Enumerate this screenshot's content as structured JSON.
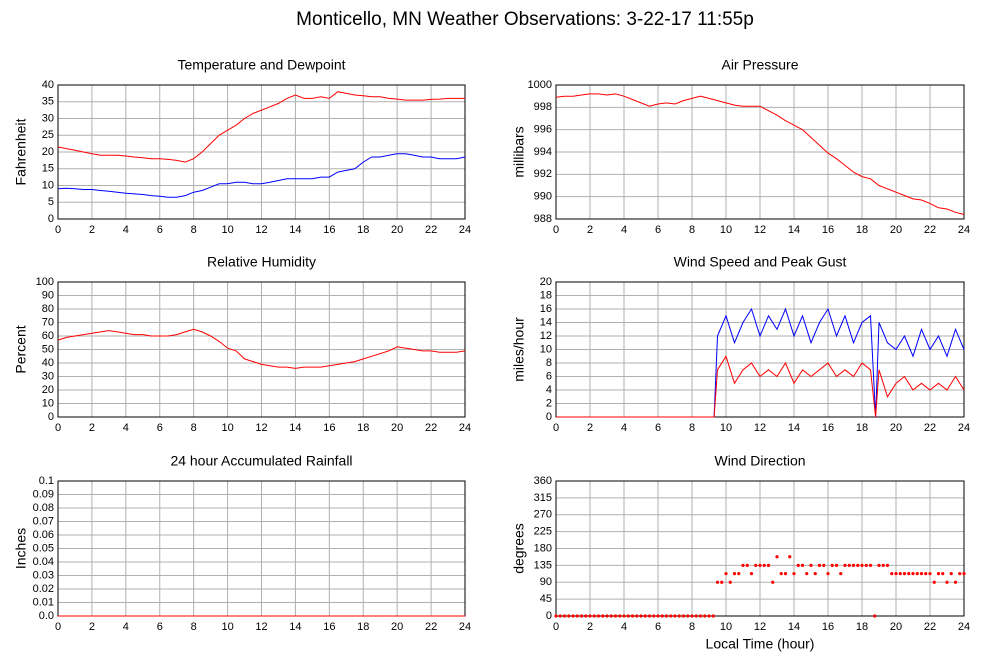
{
  "title": "Monticello, MN Weather Observations: 3-22-17 11:55p",
  "chart_data": [
    {
      "type": "line",
      "title": "Temperature and Dewpoint",
      "ylabel": "Fahrenheit",
      "x": [
        0,
        0.5,
        1,
        1.5,
        2,
        2.5,
        3,
        3.5,
        4,
        4.5,
        5,
        5.5,
        6,
        6.5,
        7,
        7.5,
        8,
        8.5,
        9,
        9.5,
        10,
        10.5,
        11,
        11.5,
        12,
        12.5,
        13,
        13.5,
        14,
        14.5,
        15,
        15.5,
        16,
        16.5,
        17,
        17.5,
        18,
        18.5,
        19,
        19.5,
        20,
        20.5,
        21,
        21.5,
        22,
        22.5,
        23,
        23.5,
        24
      ],
      "series": [
        {
          "color": "#ff0000",
          "values": [
            21.5,
            21,
            20.5,
            20,
            19.5,
            19,
            19,
            19,
            18.8,
            18.5,
            18.3,
            18,
            18,
            17.8,
            17.5,
            17,
            18,
            20,
            22.5,
            25,
            26.5,
            28,
            30,
            31.5,
            32.5,
            33.5,
            34.5,
            36,
            37,
            36,
            36,
            36.5,
            36,
            38,
            37.5,
            37,
            36.8,
            36.5,
            36.5,
            36,
            35.8,
            35.5,
            35.5,
            35.5,
            35.7,
            35.8,
            36,
            36,
            36
          ]
        },
        {
          "color": "#0000ff",
          "values": [
            9,
            9.2,
            9,
            8.8,
            8.8,
            8.5,
            8.3,
            8,
            7.7,
            7.5,
            7.3,
            7,
            6.8,
            6.5,
            6.5,
            7,
            8,
            8.5,
            9.5,
            10.5,
            10.5,
            11,
            11,
            10.5,
            10.5,
            11,
            11.5,
            12,
            12,
            12,
            12,
            12.5,
            12.5,
            14,
            14.5,
            15,
            17,
            18.5,
            18.5,
            19,
            19.5,
            19.5,
            19,
            18.5,
            18.5,
            18,
            18,
            18,
            18.5
          ]
        }
      ],
      "xlim": [
        0,
        24
      ],
      "xticks": [
        0,
        2,
        4,
        6,
        8,
        10,
        12,
        14,
        16,
        18,
        20,
        22,
        24
      ],
      "ylim": [
        0,
        40
      ],
      "yticks": [
        0,
        5,
        10,
        15,
        20,
        25,
        30,
        35,
        40
      ],
      "grid": true
    },
    {
      "type": "line",
      "title": "Air Pressure",
      "ylabel": "millibars",
      "x": [
        0,
        0.5,
        1,
        1.5,
        2,
        2.5,
        3,
        3.5,
        4,
        4.5,
        5,
        5.5,
        6,
        6.5,
        7,
        7.5,
        8,
        8.5,
        9,
        9.5,
        10,
        10.5,
        11,
        11.5,
        12,
        12.5,
        13,
        13.5,
        14,
        14.5,
        15,
        15.5,
        16,
        16.5,
        17,
        17.5,
        18,
        18.5,
        19,
        19.5,
        20,
        20.5,
        21,
        21.5,
        22,
        22.5,
        23,
        23.5,
        24
      ],
      "series": [
        {
          "color": "#ff0000",
          "values": [
            998.9,
            999,
            999,
            999.1,
            999.2,
            999.2,
            999.1,
            999.2,
            999,
            998.7,
            998.4,
            998.1,
            998.3,
            998.4,
            998.3,
            998.6,
            998.8,
            999,
            998.8,
            998.6,
            998.4,
            998.2,
            998.1,
            998.1,
            998.1,
            997.7,
            997.3,
            996.8,
            996.4,
            996,
            995.3,
            994.6,
            993.9,
            993.4,
            992.8,
            992.2,
            991.8,
            991.6,
            991,
            990.7,
            990.4,
            990.1,
            989.8,
            989.7,
            989.4,
            989,
            988.9,
            988.6,
            988.4
          ]
        }
      ],
      "xlim": [
        0,
        24
      ],
      "xticks": [
        0,
        2,
        4,
        6,
        8,
        10,
        12,
        14,
        16,
        18,
        20,
        22,
        24
      ],
      "ylim": [
        988,
        1000
      ],
      "yticks": [
        988,
        990,
        992,
        994,
        996,
        998,
        1000
      ],
      "grid": true
    },
    {
      "type": "line",
      "title": "Relative Humidity",
      "ylabel": "Percent",
      "x": [
        0,
        0.5,
        1,
        1.5,
        2,
        2.5,
        3,
        3.5,
        4,
        4.5,
        5,
        5.5,
        6,
        6.5,
        7,
        7.5,
        8,
        8.5,
        9,
        9.5,
        10,
        10.5,
        11,
        11.5,
        12,
        12.5,
        13,
        13.5,
        14,
        14.5,
        15,
        15.5,
        16,
        16.5,
        17,
        17.5,
        18,
        18.5,
        19,
        19.5,
        20,
        20.5,
        21,
        21.5,
        22,
        22.5,
        23,
        23.5,
        24
      ],
      "series": [
        {
          "color": "#ff0000",
          "values": [
            57,
            59,
            60,
            61,
            62,
            63,
            64,
            63,
            62,
            61,
            61,
            60,
            60,
            60,
            61,
            63,
            65,
            63,
            60,
            56,
            51,
            49,
            43,
            41,
            39,
            38,
            37,
            37,
            36,
            37,
            37,
            37,
            38,
            39,
            40,
            41,
            43,
            45,
            47,
            49,
            52,
            51,
            50,
            49,
            49,
            48,
            48,
            48,
            49
          ]
        }
      ],
      "xlim": [
        0,
        24
      ],
      "xticks": [
        0,
        2,
        4,
        6,
        8,
        10,
        12,
        14,
        16,
        18,
        20,
        22,
        24
      ],
      "ylim": [
        0,
        100
      ],
      "yticks": [
        0,
        10,
        20,
        30,
        40,
        50,
        60,
        70,
        80,
        90,
        100
      ],
      "grid": true
    },
    {
      "type": "line",
      "title": "Wind Speed and Peak Gust",
      "ylabel": "miles/hour",
      "x": [
        0,
        2,
        4,
        6,
        8,
        9.3,
        9.5,
        10,
        10.5,
        11,
        11.5,
        12,
        12.5,
        13,
        13.5,
        14,
        14.5,
        15,
        15.5,
        16,
        16.5,
        17,
        17.5,
        18,
        18.5,
        18.8,
        19,
        19.5,
        20,
        20.5,
        21,
        21.5,
        22,
        22.5,
        23,
        23.5,
        24
      ],
      "series": [
        {
          "color": "#0000ff",
          "values": [
            0,
            0,
            0,
            0,
            0,
            0,
            12,
            15,
            11,
            14,
            16,
            12,
            15,
            13,
            16,
            12,
            15,
            11,
            14,
            16,
            12,
            15,
            11,
            14,
            15,
            0,
            14,
            11,
            10,
            12,
            9,
            13,
            10,
            12,
            9,
            13,
            10
          ]
        },
        {
          "color": "#ff0000",
          "values": [
            0,
            0,
            0,
            0,
            0,
            0,
            7,
            9,
            5,
            7,
            8,
            6,
            7,
            6,
            8,
            5,
            7,
            6,
            7,
            8,
            6,
            7,
            6,
            8,
            7,
            0,
            7,
            3,
            5,
            6,
            4,
            5,
            4,
            5,
            4,
            6,
            4
          ]
        }
      ],
      "xlim": [
        0,
        24
      ],
      "xticks": [
        0,
        2,
        4,
        6,
        8,
        10,
        12,
        14,
        16,
        18,
        20,
        22,
        24
      ],
      "ylim": [
        0,
        20
      ],
      "yticks": [
        0,
        2,
        4,
        6,
        8,
        10,
        12,
        14,
        16,
        18,
        20
      ],
      "grid": true
    },
    {
      "type": "line",
      "title": "24 hour Accumulated Rainfall",
      "ylabel": "Inches",
      "x": [
        0,
        24
      ],
      "series": [
        {
          "color": "#ff0000",
          "values": [
            0,
            0
          ]
        }
      ],
      "xlim": [
        0,
        24
      ],
      "xticks": [
        0,
        2,
        4,
        6,
        8,
        10,
        12,
        14,
        16,
        18,
        20,
        22,
        24
      ],
      "ylim": [
        0,
        0.1
      ],
      "yticks": [
        {
          "value": 0,
          "label": "0.0"
        },
        0.01,
        0.02,
        0.03,
        0.04,
        0.05,
        0.06,
        0.07,
        0.08,
        0.09,
        0.1
      ],
      "grid": true
    },
    {
      "type": "scatter",
      "title": "Wind Direction",
      "ylabel": "degrees",
      "xlabel": "Local Time (hour)",
      "x": [
        0,
        0.25,
        0.5,
        0.75,
        1,
        1.25,
        1.5,
        1.75,
        2,
        2.25,
        2.5,
        2.75,
        3,
        3.25,
        3.5,
        3.75,
        4,
        4.25,
        4.5,
        4.75,
        5,
        5.25,
        5.5,
        5.75,
        6,
        6.25,
        6.5,
        6.75,
        7,
        7.25,
        7.5,
        7.75,
        8,
        8.25,
        8.5,
        8.75,
        9,
        9.25,
        9.5,
        9.75,
        10,
        10.25,
        10.5,
        10.75,
        11,
        11.25,
        11.5,
        11.75,
        12,
        12.25,
        12.5,
        12.75,
        13,
        13.25,
        13.5,
        13.75,
        14,
        14.25,
        14.5,
        14.75,
        15,
        15.25,
        15.5,
        15.75,
        16,
        16.25,
        16.5,
        16.75,
        17,
        17.25,
        17.5,
        17.75,
        18,
        18.25,
        18.5,
        18.75,
        19,
        19.25,
        19.5,
        19.75,
        20,
        20.25,
        20.5,
        20.75,
        21,
        21.25,
        21.5,
        21.75,
        22,
        22.25,
        22.5,
        22.75,
        23,
        23.25,
        23.5,
        23.75,
        24
      ],
      "series": [
        {
          "color": "#ff0000",
          "values": [
            0,
            0,
            0,
            0,
            0,
            0,
            0,
            0,
            0,
            0,
            0,
            0,
            0,
            0,
            0,
            0,
            0,
            0,
            0,
            0,
            0,
            0,
            0,
            0,
            0,
            0,
            0,
            0,
            0,
            0,
            0,
            0,
            0,
            0,
            0,
            0,
            0,
            0,
            90,
            90,
            113,
            90,
            113,
            113,
            135,
            135,
            113,
            135,
            135,
            135,
            135,
            90,
            158,
            113,
            113,
            158,
            113,
            135,
            135,
            113,
            135,
            113,
            135,
            135,
            113,
            135,
            135,
            113,
            135,
            135,
            135,
            135,
            135,
            135,
            135,
            0,
            135,
            135,
            135,
            113,
            113,
            113,
            113,
            113,
            113,
            113,
            113,
            113,
            113,
            90,
            113,
            113,
            90,
            113,
            90,
            113,
            113
          ]
        }
      ],
      "xlim": [
        0,
        24
      ],
      "xticks": [
        0,
        2,
        4,
        6,
        8,
        10,
        12,
        14,
        16,
        18,
        20,
        22,
        24
      ],
      "ylim": [
        0,
        360
      ],
      "yticks": [
        0,
        45,
        90,
        135,
        180,
        225,
        270,
        315,
        360
      ],
      "grid": true
    }
  ]
}
